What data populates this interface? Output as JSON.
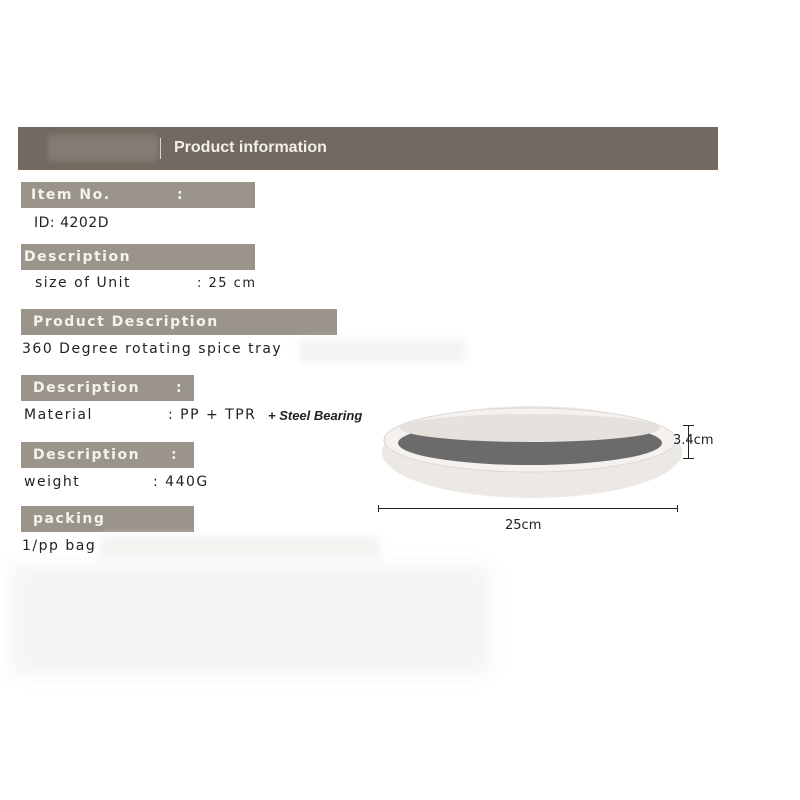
{
  "header": {
    "title": "Product information"
  },
  "sections": [
    {
      "label": "Item No.",
      "colon": ":",
      "value": "ID:  4202D"
    },
    {
      "label": "Description",
      "value_label": "size of Unit",
      "value": ":  25 cm"
    },
    {
      "label": "Product Description",
      "value": "360 Degree rotating spice tray"
    },
    {
      "label": "Description",
      "colon": ":",
      "value_label": "Material",
      "value": ": PP + TPR",
      "value_extra": "+ Steel Bearing"
    },
    {
      "label": "Description",
      "colon": ":",
      "value_label": "weight",
      "value": ": 440G"
    },
    {
      "label": "packing",
      "value": "1/pp bag"
    }
  ],
  "product_image": {
    "width_label": "25cm",
    "height_label": "3.4cm",
    "tray_color": "#f2eeea",
    "mat_color": "#6b6b6b"
  },
  "colors": {
    "header": "#736960",
    "label_bar": "#9a948a"
  }
}
